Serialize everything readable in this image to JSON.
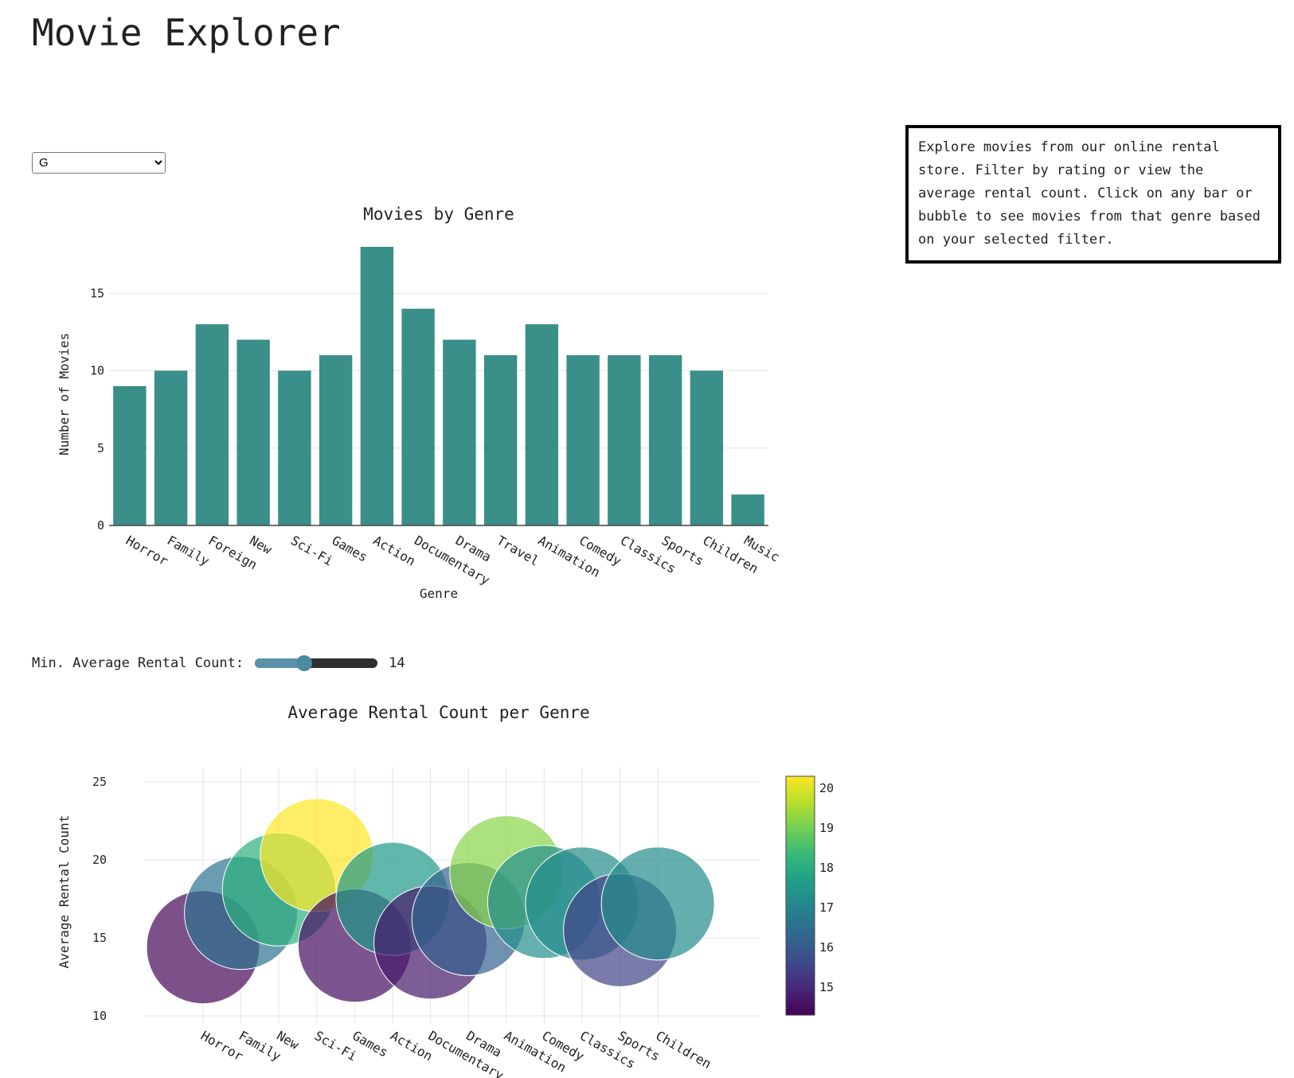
{
  "app_title": "Movie Explorer",
  "rating_filter": {
    "selected": "G",
    "options": [
      "G"
    ]
  },
  "info_text": "Explore movies from our online rental store. Filter by rating or view the average rental count. Click on any bar or bubble to see movies from that genre based on your selected filter.",
  "slider": {
    "label": "Min. Average Rental Count:",
    "value": 14,
    "min": 10,
    "max": 20,
    "fill_color": "#5a93a8",
    "track_color": "#2f2f2f"
  },
  "chart_data": [
    {
      "type": "bar",
      "title": "Movies by Genre",
      "xlabel": "Genre",
      "ylabel": "Number of Movies",
      "categories": [
        "Horror",
        "Family",
        "Foreign",
        "New",
        "Sci-Fi",
        "Games",
        "Action",
        "Documentary",
        "Drama",
        "Travel",
        "Animation",
        "Comedy",
        "Classics",
        "Sports",
        "Children",
        "Music"
      ],
      "values": [
        9,
        10,
        13,
        12,
        10,
        11,
        18,
        14,
        12,
        11,
        13,
        11,
        11,
        11,
        10,
        2
      ],
      "ylim": [
        0,
        18
      ],
      "yticks": [
        0,
        5,
        10,
        15
      ],
      "bar_color": "#3a8f88",
      "grid": true
    },
    {
      "type": "scatter",
      "title": "Average Rental Count per Genre",
      "xlabel": "",
      "ylabel": "Average Rental Count",
      "categories": [
        "Horror",
        "Family",
        "New",
        "Sci-Fi",
        "Games",
        "Action",
        "Documentary",
        "Drama",
        "Animation",
        "Comedy",
        "Classics",
        "Sports",
        "Children"
      ],
      "values": [
        14.4,
        16.6,
        18.1,
        20.3,
        14.5,
        17.5,
        14.7,
        16.2,
        19.2,
        17.3,
        17.2,
        15.5,
        17.2
      ],
      "ylim": [
        10,
        25
      ],
      "yticks": [
        10,
        15,
        20,
        25
      ],
      "colorscale": "Viridis",
      "colorbar_range": [
        14.3,
        20.3
      ],
      "colorbar_ticks": [
        15,
        16,
        17,
        18,
        19,
        20
      ],
      "grid": true
    }
  ]
}
